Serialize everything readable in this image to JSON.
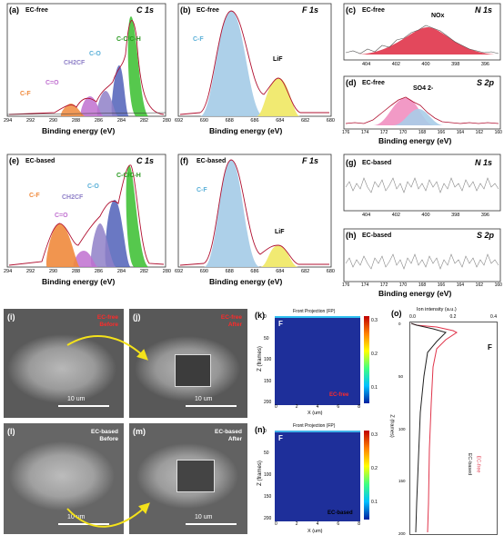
{
  "panels": {
    "a": {
      "letter": "(a)",
      "title": "EC-free",
      "core": "C 1s",
      "peaks": [
        "C-F",
        "C=O",
        "CH2CF",
        "C-O",
        "C-C/C-H"
      ],
      "xticks": [
        "294",
        "292",
        "290",
        "288",
        "286",
        "284",
        "282",
        "280"
      ],
      "xlabel": "Binding energy (eV)"
    },
    "b": {
      "letter": "(b)",
      "title": "EC-free",
      "core": "F 1s",
      "peaks": [
        "C-F",
        "LiF"
      ],
      "xticks": [
        "692",
        "690",
        "688",
        "686",
        "684",
        "682",
        "680"
      ],
      "xlabel": "Binding energy (eV)"
    },
    "c": {
      "letter": "(c)",
      "title": "EC-free",
      "core": "N 1s",
      "peaks": [
        "NOx"
      ],
      "xticks": [
        "404",
        "402",
        "400",
        "398",
        "396"
      ]
    },
    "d": {
      "letter": "(d)",
      "title": "EC-free",
      "core": "S 2p",
      "peaks": [
        "SO4 2-"
      ],
      "xticks": [
        "176",
        "174",
        "172",
        "170",
        "168",
        "166",
        "164",
        "162",
        "160"
      ],
      "xlabel": "Binding energy (eV)"
    },
    "e": {
      "letter": "(e)",
      "title": "EC-based",
      "core": "C 1s",
      "peaks": [
        "C-F",
        "C=O",
        "CH2CF",
        "C-O",
        "C-C/C-H"
      ],
      "xticks": [
        "294",
        "292",
        "290",
        "288",
        "286",
        "284",
        "282",
        "280"
      ],
      "xlabel": "Binding energy (eV)"
    },
    "f": {
      "letter": "(f)",
      "title": "EC-based",
      "core": "F 1s",
      "peaks": [
        "C-F",
        "LiF"
      ],
      "xticks": [
        "692",
        "690",
        "688",
        "686",
        "684",
        "682",
        "680"
      ],
      "xlabel": "Binding energy (eV)"
    },
    "g": {
      "letter": "(g)",
      "title": "EC-based",
      "core": "N 1s",
      "xticks": [
        "404",
        "402",
        "400",
        "398",
        "396"
      ]
    },
    "h": {
      "letter": "(h)",
      "title": "EC-based",
      "core": "S 2p",
      "xticks": [
        "176",
        "174",
        "172",
        "170",
        "168",
        "166",
        "164",
        "162",
        "160"
      ],
      "xlabel": "Binding energy (eV)"
    },
    "i": {
      "letter": "(i)",
      "caption1": "EC-free",
      "caption2": "Before",
      "scale": "10 um"
    },
    "j": {
      "letter": "(j)",
      "caption1": "EC-free",
      "caption2": "After",
      "scale": "10 um"
    },
    "l": {
      "letter": "(l)",
      "caption1": "EC-based",
      "caption2": "Before",
      "scale": "10 um"
    },
    "m": {
      "letter": "(m)",
      "caption1": "EC-based",
      "caption2": "After",
      "scale": "10 um"
    },
    "k": {
      "letter": "(k)",
      "element": "F",
      "top": "Front Projection (FP)",
      "ylabel": "Z (frames)",
      "xlabel": "X (um)",
      "legend": "EC-free",
      "yticks": [
        "0",
        "50",
        "100",
        "150",
        "200"
      ],
      "xticks": [
        "0",
        "2",
        "4",
        "6",
        "8"
      ],
      "cbar": [
        "0.3",
        "0.2",
        "0.1"
      ]
    },
    "n": {
      "letter": "(n)",
      "element": "F",
      "top": "Front Projection (FP)",
      "ylabel": "Z (frames)",
      "xlabel": "X (um)",
      "legend": "EC-based",
      "yticks": [
        "0",
        "50",
        "100",
        "150",
        "200"
      ],
      "xticks": [
        "0",
        "2",
        "4",
        "6",
        "8"
      ],
      "cbar": [
        "0.3",
        "0.2",
        "0.1"
      ]
    },
    "o": {
      "letter": "(o)",
      "toplabel": "Ion intensity (a.u.)",
      "element": "F",
      "ylabel": "Z (frames)",
      "xticks": [
        "0.0",
        "0.2",
        "0.4"
      ],
      "yticks": [
        "0",
        "50",
        "100",
        "150",
        "200"
      ],
      "legend": [
        "EC-free",
        "EC-based"
      ]
    }
  },
  "colors": {
    "cf": "#f08a3c",
    "co2": "#c070d0",
    "ch2cf": "#8f80c8",
    "co": "#5060b8",
    "cc": "#44c23a",
    "blue": "#a9cde8",
    "yellow": "#f0e96a",
    "red": "#e0344a",
    "pink": "#f18fc0",
    "fit": "#b01030"
  }
}
